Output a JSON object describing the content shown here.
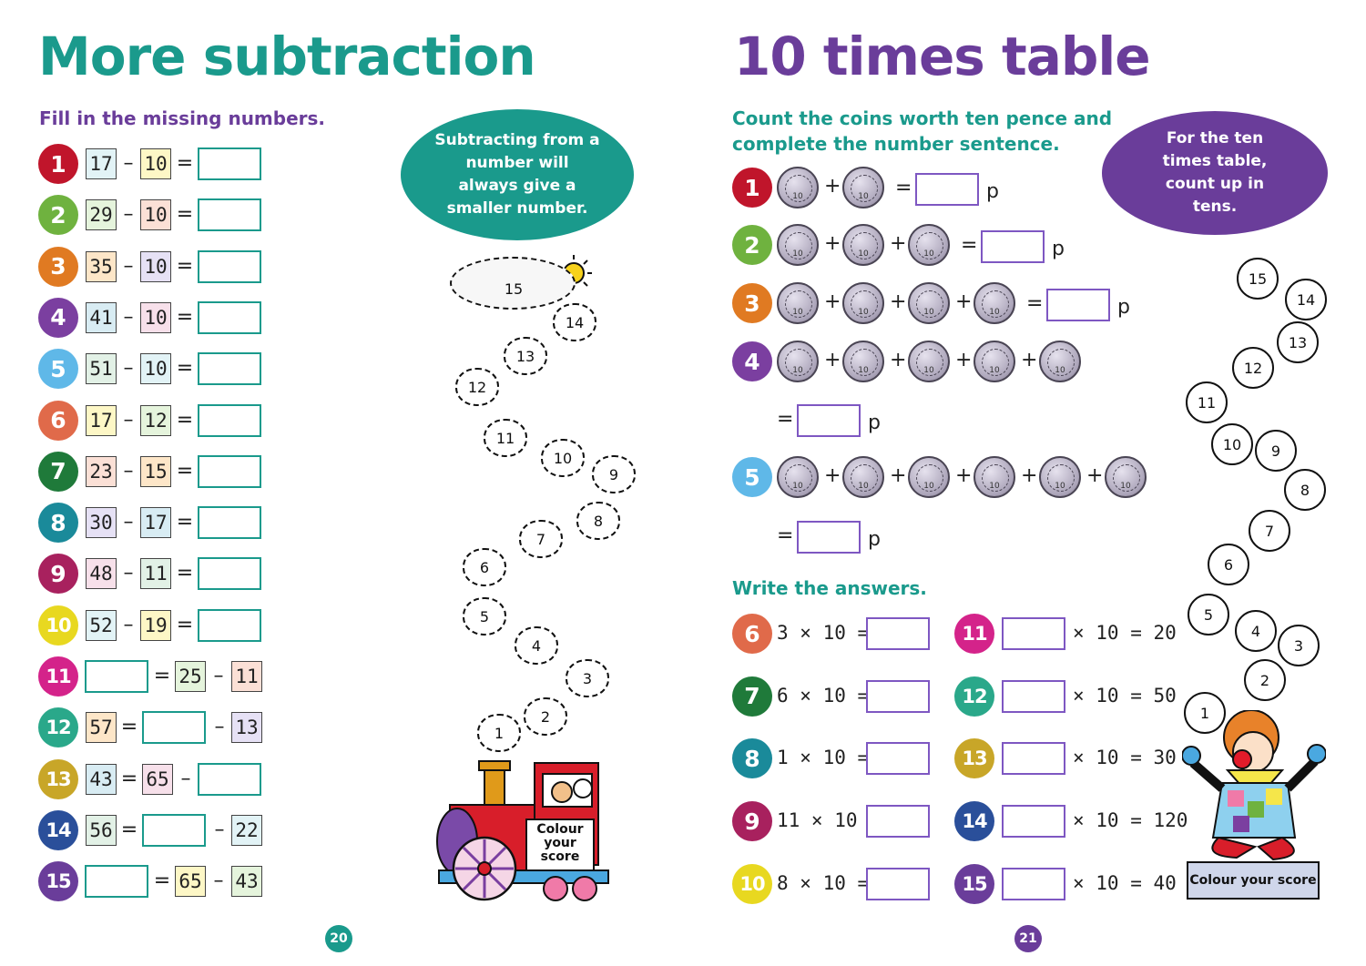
{
  "left_page": {
    "title": "More subtraction",
    "instruction": "Fill in the missing numbers.",
    "tip": "Subtracting from a number will always give a smaller number.",
    "page_number": "20",
    "questions": [
      {
        "num": "1",
        "a": "17",
        "b": "10"
      },
      {
        "num": "2",
        "a": "29",
        "b": "10"
      },
      {
        "num": "3",
        "a": "35",
        "b": "10"
      },
      {
        "num": "4",
        "a": "41",
        "b": "10"
      },
      {
        "num": "5",
        "a": "51",
        "b": "10"
      },
      {
        "num": "6",
        "a": "17",
        "b": "12"
      },
      {
        "num": "7",
        "a": "23",
        "b": "15"
      },
      {
        "num": "8",
        "a": "30",
        "b": "17"
      },
      {
        "num": "9",
        "a": "48",
        "b": "11"
      },
      {
        "num": "10",
        "a": "52",
        "b": "19"
      },
      {
        "num": "11",
        "b": "25",
        "c": "11"
      },
      {
        "num": "12",
        "a": "57",
        "c": "13"
      },
      {
        "num": "13",
        "a": "43",
        "b": "65"
      },
      {
        "num": "14",
        "a": "56",
        "c": "22"
      },
      {
        "num": "15",
        "b": "65",
        "c": "43"
      }
    ],
    "symbols": {
      "minus": "–",
      "equals": "="
    },
    "score_clouds": [
      "15",
      "14",
      "13",
      "12",
      "11",
      "10",
      "9",
      "8",
      "7",
      "6",
      "5",
      "4",
      "3",
      "2",
      "1"
    ],
    "score_label": "Colour your score"
  },
  "right_page": {
    "title": "10 times table",
    "instruction": "Count the coins worth ten pence and complete the number sentence.",
    "tip": "For the ten times table, count up in tens.",
    "page_number": "21",
    "coin_label": "10",
    "unit": "p",
    "plus": "+",
    "equals": "=",
    "coin_questions": [
      {
        "num": "1",
        "coins": 2
      },
      {
        "num": "2",
        "coins": 3
      },
      {
        "num": "3",
        "coins": 4
      },
      {
        "num": "4",
        "coins": 5
      },
      {
        "num": "5",
        "coins": 6
      }
    ],
    "instruction2": "Write the answers.",
    "answer_questions_left": [
      {
        "num": "6",
        "text": "3 × 10 ="
      },
      {
        "num": "7",
        "text": "6 × 10 ="
      },
      {
        "num": "8",
        "text": "1 × 10 ="
      },
      {
        "num": "9",
        "text": "11 × 10 ="
      },
      {
        "num": "10",
        "text": "8 × 10 ="
      }
    ],
    "answer_questions_right": [
      {
        "num": "11",
        "text": "× 10 = 20"
      },
      {
        "num": "12",
        "text": "× 10 = 50"
      },
      {
        "num": "13",
        "text": "× 10 = 30"
      },
      {
        "num": "14",
        "text": "× 10 = 120"
      },
      {
        "num": "15",
        "text": "× 10 = 40"
      }
    ],
    "score_circles": [
      "15",
      "14",
      "13",
      "12",
      "11",
      "10",
      "9",
      "8",
      "7",
      "6",
      "5",
      "4",
      "3",
      "2",
      "1"
    ],
    "score_label": "Colour your score"
  },
  "colors": {
    "teal": "#1a9a8c",
    "purple": "#6a3d9a",
    "q1": "#c0152b",
    "q2": "#6fb23f",
    "q3": "#e07a22",
    "q4": "#7b3fa0",
    "q5": "#5fb8e8",
    "q6": "#e06a4a",
    "q7": "#1f7a3a",
    "q8": "#1a8a9a",
    "q9": "#a8215e",
    "q10": "#e8d820",
    "q11": "#d4238a",
    "q12": "#2aa88a",
    "q13": "#c8a628",
    "q14": "#2a4f9a",
    "q15": "#6a3d9a"
  }
}
